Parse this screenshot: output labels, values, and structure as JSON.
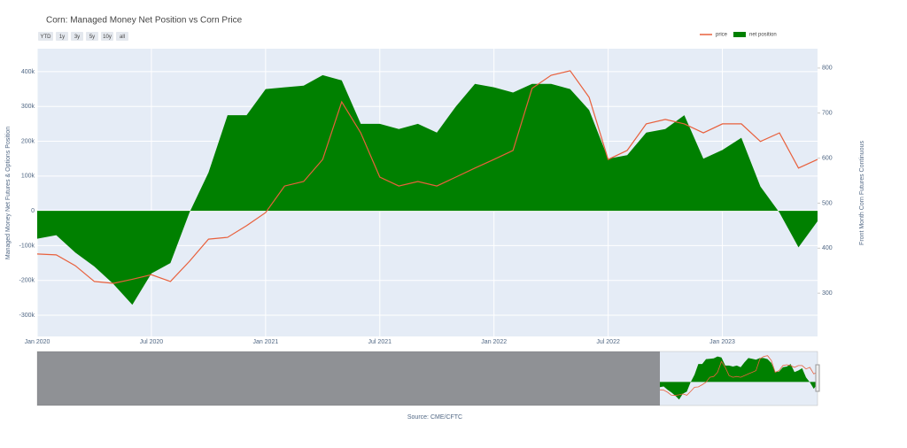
{
  "chart_data": {
    "type": "area-line",
    "title": "Corn: Managed Money Net Position vs Corn Price",
    "buttons": [
      "YTD",
      "1y",
      "3y",
      "5y",
      "10y",
      "all"
    ],
    "y_label": "Managed Money Net Futures & Options Position",
    "y2_label": "Front Month Corn Futures Continuous",
    "source": "Source: CME/CFTC",
    "legend": "top-right",
    "grid": true,
    "x": [
      "2020-01",
      "2020-02",
      "2020-03",
      "2020-04",
      "2020-05",
      "2020-06",
      "2020-07",
      "2020-08",
      "2020-09",
      "2020-10",
      "2020-11",
      "2020-12",
      "2021-01",
      "2021-02",
      "2021-03",
      "2021-04",
      "2021-05",
      "2021-06",
      "2021-07",
      "2021-08",
      "2021-09",
      "2021-10",
      "2021-11",
      "2021-12",
      "2022-01",
      "2022-02",
      "2022-03",
      "2022-04",
      "2022-05",
      "2022-06",
      "2022-07",
      "2022-08",
      "2022-09",
      "2022-10",
      "2022-11",
      "2022-12",
      "2023-01",
      "2023-02",
      "2023-03",
      "2023-04",
      "2023-05",
      "2023-06"
    ],
    "xlim": [
      "2020-01",
      "2023-06"
    ],
    "xticks": [
      {
        "value": "2020-01",
        "label": "Jan 2020"
      },
      {
        "value": "2020-07",
        "label": "Jul 2020"
      },
      {
        "value": "2021-01",
        "label": "Jan 2021"
      },
      {
        "value": "2021-07",
        "label": "Jul 2021"
      },
      {
        "value": "2022-01",
        "label": "Jan 2022"
      },
      {
        "value": "2022-07",
        "label": "Jul 2022"
      },
      {
        "value": "2023-01",
        "label": "Jan 2023"
      }
    ],
    "ylim": [
      -361000,
      466000
    ],
    "yticks": [
      {
        "value": -300000,
        "label": "-300k"
      },
      {
        "value": -200000,
        "label": "-200k"
      },
      {
        "value": -100000,
        "label": "-100k"
      },
      0,
      {
        "value": 100000,
        "label": "100k"
      },
      {
        "value": 200000,
        "label": "200k"
      },
      {
        "value": 300000,
        "label": "300k"
      },
      {
        "value": 400000,
        "label": "400k"
      }
    ],
    "y2lim": [
      204,
      843
    ],
    "y2ticks": [
      300,
      400,
      500,
      600,
      700,
      800
    ],
    "series": [
      {
        "name": "price",
        "color": "#e8603c",
        "axis": "y2",
        "values": [
          387,
          385,
          361,
          326,
          322,
          331,
          341,
          326,
          371,
          420,
          424,
          450,
          479,
          538,
          548,
          597,
          725,
          656,
          558,
          538,
          548,
          538,
          558,
          578,
          597,
          617,
          755,
          784,
          794,
          735,
          597,
          617,
          676,
          686,
          676,
          656,
          676,
          676,
          637,
          656,
          578,
          597
        ]
      },
      {
        "name": "net position",
        "color": "#008000",
        "values": [
          -80000,
          -70000,
          -120000,
          -160000,
          -210000,
          -270000,
          -180000,
          -150000,
          -5000,
          110000,
          275000,
          275000,
          350000,
          355000,
          360000,
          390000,
          375000,
          250000,
          250000,
          235000,
          250000,
          225000,
          300000,
          365000,
          355000,
          340000,
          365000,
          365000,
          350000,
          290000,
          150000,
          160000,
          225000,
          235000,
          275000,
          150000,
          175000,
          210000,
          70000,
          -5000,
          -105000,
          -30000
        ]
      }
    ]
  }
}
